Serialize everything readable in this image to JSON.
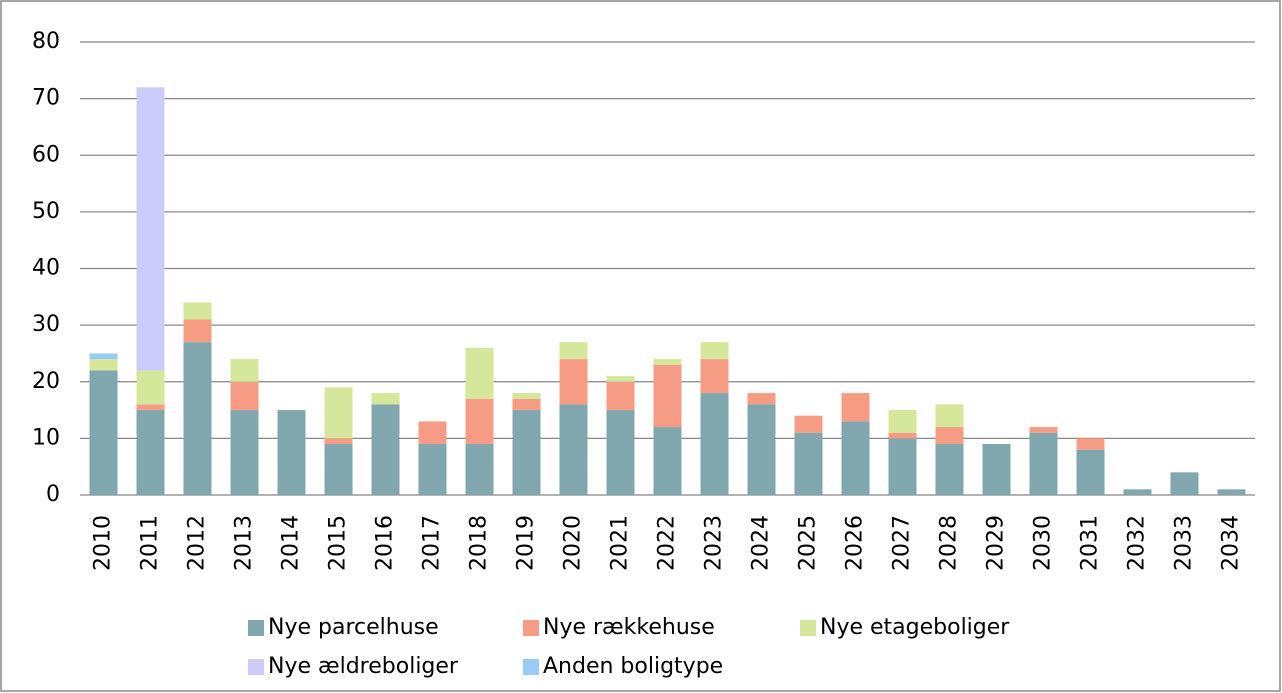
{
  "chart_data": {
    "type": "bar",
    "stacked": true,
    "categories": [
      "2010",
      "2011",
      "2012",
      "2013",
      "2014",
      "2015",
      "2016",
      "2017",
      "2018",
      "2019",
      "2020",
      "2021",
      "2022",
      "2023",
      "2024",
      "2025",
      "2026",
      "2027",
      "2028",
      "2029",
      "2030",
      "2031",
      "2032",
      "2033",
      "2034"
    ],
    "series": [
      {
        "name": "Nye parcelhuse",
        "color": "#7fa7ad",
        "values": [
          22,
          15,
          27,
          15,
          15,
          9,
          16,
          9,
          9,
          15,
          16,
          15,
          12,
          18,
          16,
          11,
          13,
          10,
          9,
          9,
          11,
          8,
          1,
          4,
          1
        ]
      },
      {
        "name": "Nye rækkehuse",
        "color": "#f79c84",
        "values": [
          0,
          1,
          4,
          5,
          0,
          1,
          0,
          4,
          8,
          2,
          8,
          5,
          11,
          6,
          2,
          3,
          5,
          1,
          3,
          0,
          1,
          2,
          0,
          0,
          0
        ]
      },
      {
        "name": "Nye etageboliger",
        "color": "#d5e79a",
        "values": [
          2,
          6,
          3,
          4,
          0,
          9,
          2,
          0,
          9,
          1,
          3,
          1,
          1,
          3,
          0,
          0,
          0,
          4,
          4,
          0,
          0,
          0,
          0,
          0,
          0
        ]
      },
      {
        "name": "Nye ældreboliger",
        "color": "#ccccfb",
        "values": [
          0,
          50,
          0,
          0,
          0,
          0,
          0,
          0,
          0,
          0,
          0,
          0,
          0,
          0,
          0,
          0,
          0,
          0,
          0,
          0,
          0,
          0,
          0,
          0,
          0
        ]
      },
      {
        "name": "Anden boligtype",
        "color": "#99cbf5",
        "values": [
          1,
          0,
          0,
          0,
          0,
          0,
          0,
          0,
          0,
          0,
          0,
          0,
          0,
          0,
          0,
          0,
          0,
          0,
          0,
          0,
          0,
          0,
          0,
          0,
          0
        ]
      }
    ],
    "ylim": [
      0,
      80
    ],
    "yticks": [
      0,
      10,
      20,
      30,
      40,
      50,
      60,
      70,
      80
    ],
    "grid": true,
    "legend": "bottom"
  }
}
